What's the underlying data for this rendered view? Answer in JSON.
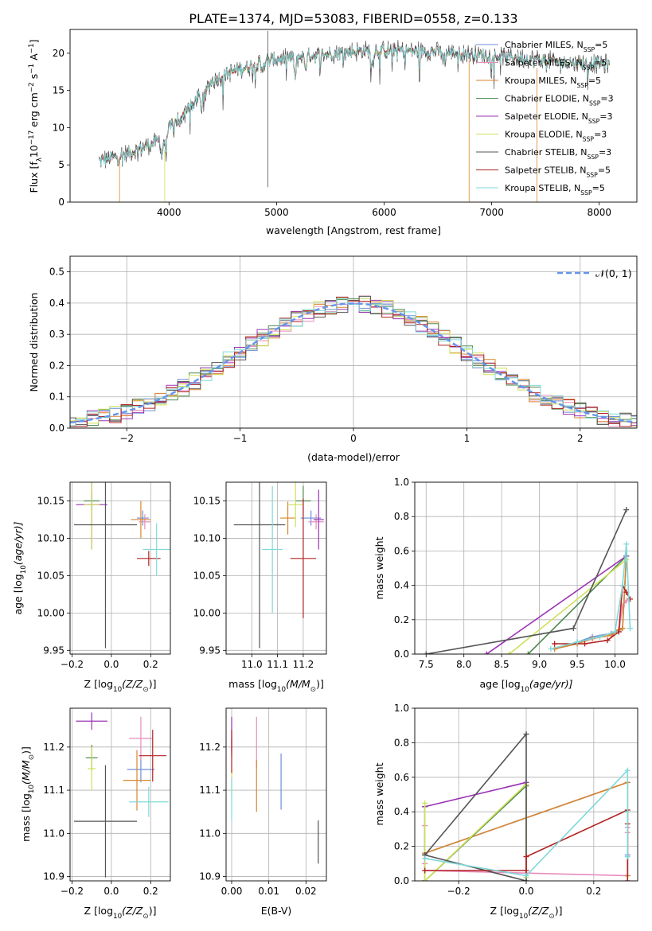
{
  "figure": {
    "suptitle": "PLATE=1374, MJD=53083, FIBERID=0558, z=0.133"
  },
  "colors": {
    "Chabrier MILES": "#6f8fd8",
    "Salpeter MILES": "#e88cbc",
    "Kroupa MILES": "#d9862e",
    "Chabrier ELODIE": "#4f8a4f",
    "Salpeter ELODIE": "#9a33b5",
    "Kroupa ELODIE": "#cfe05a",
    "Chabrier STELIB": "#555555",
    "Salpeter STELIB": "#b22222",
    "Kroupa STELIB": "#80d8d8",
    "gauss": "#6495ed"
  },
  "chart_data": [
    {
      "id": "spectrum",
      "type": "line",
      "xlabel": "wavelength [Angstrom, rest frame]",
      "ylabel_parts": [
        "Flux [f",
        "λ",
        "10",
        "−17",
        " erg cm",
        "−2",
        " s",
        "−1",
        " A",
        "−1",
        "]"
      ],
      "xlim": [
        3080,
        8350
      ],
      "ylim": [
        0,
        23.2
      ],
      "xticks": [
        4000,
        5000,
        6000,
        7000,
        8000
      ],
      "yticks": [
        0,
        5,
        10,
        15,
        20
      ],
      "legend_position": "top-right",
      "legend": [
        {
          "name": "Chabrier MILES",
          "base": "Chabrier MILES, N",
          "sub": "SSP",
          "tail": "=5"
        },
        {
          "name": "Salpeter MILES",
          "base": "Salpeter MILES, N",
          "sub": "SSP",
          "tail": "=5"
        },
        {
          "name": "Kroupa MILES",
          "base": "Kroupa MILES, N",
          "sub": "SSP",
          "tail": "=5"
        },
        {
          "name": "Chabrier ELODIE",
          "base": "Chabrier ELODIE, N",
          "sub": "SSP",
          "tail": "=3"
        },
        {
          "name": "Salpeter ELODIE",
          "base": "Salpeter ELODIE, N",
          "sub": "SSP",
          "tail": "=3"
        },
        {
          "name": "Kroupa ELODIE",
          "base": "Kroupa ELODIE, N",
          "sub": "SSP",
          "tail": "=3"
        },
        {
          "name": "Chabrier STELIB",
          "base": "Chabrier STELIB, N",
          "sub": "SSP",
          "tail": "=3"
        },
        {
          "name": "Salpeter STELIB",
          "base": "Salpeter STELIB, N",
          "sub": "SSP",
          "tail": "=5"
        },
        {
          "name": "Kroupa STELIB",
          "base": "Kroupa STELIB, N",
          "sub": "SSP",
          "tail": "=5"
        }
      ],
      "continuum": [
        [
          3350,
          5.6
        ],
        [
          3500,
          6.0
        ],
        [
          3700,
          7.0
        ],
        [
          3900,
          8.2
        ],
        [
          4000,
          9.8
        ],
        [
          4100,
          11.5
        ],
        [
          4200,
          13.2
        ],
        [
          4300,
          14.8
        ],
        [
          4400,
          16.2
        ],
        [
          4500,
          17.0
        ],
        [
          4600,
          17.6
        ],
        [
          4700,
          18.0
        ],
        [
          4800,
          18.5
        ],
        [
          4900,
          18.9
        ],
        [
          5000,
          19.2
        ],
        [
          5100,
          19.4
        ],
        [
          5200,
          19.5
        ],
        [
          5400,
          19.8
        ],
        [
          5600,
          20.1
        ],
        [
          5800,
          20.3
        ],
        [
          6000,
          20.4
        ],
        [
          6200,
          20.4
        ],
        [
          6400,
          20.3
        ],
        [
          6600,
          20.1
        ],
        [
          6800,
          19.9
        ],
        [
          7000,
          19.7
        ],
        [
          7200,
          19.5
        ],
        [
          7400,
          19.2
        ],
        [
          7600,
          18.9
        ],
        [
          7800,
          18.7
        ],
        [
          8000,
          18.6
        ],
        [
          8100,
          18.5
        ]
      ],
      "dips": [
        [
          3934,
          -2.5
        ],
        [
          3968,
          -2.2
        ],
        [
          4102,
          -1.5
        ],
        [
          4227,
          -1.2
        ],
        [
          4300,
          -2.5
        ],
        [
          4340,
          -1.5
        ],
        [
          4861,
          -1.2
        ],
        [
          5175,
          -2.8
        ],
        [
          5270,
          -1.5
        ],
        [
          5890,
          -2.0
        ],
        [
          6563,
          -1.0
        ]
      ],
      "spikes": [
        {
          "x": 4920,
          "ymin": 2.0,
          "ymax": 23.0
        },
        {
          "x": 3540,
          "ymin": 0,
          "ymax": 6.0
        },
        {
          "x": 3960,
          "ymin": 0,
          "ymax": 7.0
        },
        {
          "x": 6790,
          "ymin": 0,
          "ymax": 19.0
        },
        {
          "x": 7420,
          "ymin": 0,
          "ymax": 18.0
        }
      ],
      "series_order": [
        "Chabrier MILES",
        "Salpeter MILES",
        "Kroupa MILES",
        "Chabrier ELODIE",
        "Salpeter ELODIE",
        "Kroupa ELODIE",
        "Salpeter STELIB",
        "Chabrier STELIB",
        "Kroupa STELIB"
      ]
    },
    {
      "id": "residuals",
      "type": "line",
      "xlabel": "(data-model)/error",
      "ylabel": "Normed distribution",
      "xlim": [
        -2.5,
        2.5
      ],
      "ylim": [
        0,
        0.55
      ],
      "xticks": [
        -2,
        -1,
        0,
        1,
        2
      ],
      "yticks": [
        0.0,
        0.1,
        0.2,
        0.3,
        0.4,
        0.5
      ],
      "grid": true,
      "legend_position": "top-right",
      "legend_label": "𝒩(0, 1)",
      "bin_width": 0.1,
      "series_order": [
        "Chabrier MILES",
        "Salpeter MILES",
        "Kroupa MILES",
        "Chabrier ELODIE",
        "Salpeter ELODIE",
        "Kroupa ELODIE",
        "Chabrier STELIB",
        "Salpeter STELIB",
        "Kroupa STELIB"
      ]
    },
    {
      "id": "age_vs_Z",
      "type": "scatter",
      "xlabel_parts": [
        "Z [log",
        "10",
        "(Z/Z",
        "⊙",
        ")]"
      ],
      "ylabel_parts": [
        "age  [log",
        "10",
        "(age/yr)]"
      ],
      "xlim": [
        -0.21,
        0.3
      ],
      "ylim": [
        9.945,
        10.175
      ],
      "xticks": [
        -0.2,
        0.0,
        0.2
      ],
      "yticks": [
        9.95,
        10.0,
        10.05,
        10.1,
        10.15
      ],
      "grid": true,
      "points": [
        {
          "name": "Chabrier MILES",
          "x": 0.16,
          "xerr": 0.03,
          "y": 10.127,
          "yerr": 0.01
        },
        {
          "name": "Salpeter MILES",
          "x": 0.17,
          "xerr": 0.03,
          "y": 10.122,
          "yerr": 0.01
        },
        {
          "name": "Kroupa MILES",
          "x": 0.15,
          "xerr": 0.05,
          "y": 10.125,
          "yerr": 0.025
        },
        {
          "name": "Chabrier ELODIE",
          "x": -0.1,
          "xerr": 0.04,
          "y": 10.15,
          "yerr": 0.01
        },
        {
          "name": "Salpeter ELODIE",
          "x": -0.1,
          "xerr": 0.08,
          "y": 10.145,
          "yerr": 0.06
        },
        {
          "name": "Kroupa ELODIE",
          "x": -0.1,
          "xerr": 0.04,
          "y": 10.145,
          "yerr": 0.06
        },
        {
          "name": "Chabrier STELIB",
          "x": -0.03,
          "xerr": 0.16,
          "y": 10.118,
          "yerr": 0.165
        },
        {
          "name": "Salpeter STELIB",
          "x": 0.19,
          "xerr": 0.06,
          "y": 10.073,
          "yerr": 0.01
        },
        {
          "name": "Kroupa STELIB",
          "x": 0.23,
          "xerr": 0.07,
          "y": 10.085,
          "yerr": 0.035
        }
      ]
    },
    {
      "id": "age_vs_mass",
      "type": "scatter",
      "xlabel_parts": [
        "mass [log",
        "10",
        "(M/M",
        "⊙",
        ")]"
      ],
      "xlim": [
        10.9,
        11.29
      ],
      "ylim": [
        9.945,
        10.175
      ],
      "xticks": [
        11.0,
        11.1,
        11.2
      ],
      "yticks": [
        9.95,
        10.0,
        10.05,
        10.1,
        10.15
      ],
      "grid": true,
      "points": [
        {
          "name": "Chabrier MILES",
          "x": 11.23,
          "xerr": 0.04,
          "y": 10.127,
          "yerr": 0.01
        },
        {
          "name": "Salpeter MILES",
          "x": 11.25,
          "xerr": 0.03,
          "y": 10.122,
          "yerr": 0.01
        },
        {
          "name": "Kroupa MILES",
          "x": 11.14,
          "xerr": 0.03,
          "y": 10.127,
          "yerr": 0.022
        },
        {
          "name": "Chabrier ELODIE",
          "x": 11.2,
          "xerr": 0.03,
          "y": 10.15,
          "yerr": 0.02
        },
        {
          "name": "Salpeter ELODIE",
          "x": 11.26,
          "xerr": 0.02,
          "y": 10.125,
          "yerr": 0.04
        },
        {
          "name": "Kroupa ELODIE",
          "x": 11.17,
          "xerr": 0.03,
          "y": 10.145,
          "yerr": 0.03
        },
        {
          "name": "Chabrier STELIB",
          "x": 11.03,
          "xerr": 0.1,
          "y": 10.118,
          "yerr": 0.165
        },
        {
          "name": "Salpeter STELIB",
          "x": 11.2,
          "xerr": 0.05,
          "y": 10.073,
          "yerr": 0.08
        },
        {
          "name": "Kroupa STELIB",
          "x": 11.08,
          "xerr": 0.04,
          "y": 10.085,
          "yerr": 0.085
        }
      ]
    },
    {
      "id": "massweight_vs_age",
      "type": "line",
      "xlabel_parts": [
        "age  [log",
        "10",
        "(age/yr)]"
      ],
      "ylabel": "mass weight",
      "xlim": [
        7.35,
        10.3
      ],
      "ylim": [
        0,
        1.0
      ],
      "xticks": [
        7.5,
        8.0,
        8.5,
        9.0,
        9.5,
        10.0
      ],
      "yticks": [
        0.0,
        0.2,
        0.4,
        0.6,
        0.8,
        1.0
      ],
      "grid": true,
      "series": [
        {
          "name": "Chabrier MILES",
          "x": [
            9.2,
            9.5,
            9.7,
            9.95,
            10.05,
            10.1,
            10.15
          ],
          "y": [
            0.03,
            0.07,
            0.1,
            0.12,
            0.14,
            0.15,
            0.57
          ]
        },
        {
          "name": "Salpeter MILES",
          "x": [
            9.2,
            9.5,
            9.7,
            9.95,
            10.05,
            10.1,
            10.15
          ],
          "y": [
            0.03,
            0.06,
            0.09,
            0.11,
            0.13,
            0.28,
            0.31
          ]
        },
        {
          "name": "Kroupa MILES",
          "x": [
            9.2,
            9.5,
            9.7,
            9.95,
            10.05,
            10.1,
            10.15
          ],
          "y": [
            0.03,
            0.06,
            0.09,
            0.11,
            0.14,
            0.15,
            0.57
          ]
        },
        {
          "name": "Chabrier ELODIE",
          "x": [
            8.85,
            10.15
          ],
          "y": [
            0.0,
            0.57
          ]
        },
        {
          "name": "Salpeter ELODIE",
          "x": [
            8.3,
            10.15
          ],
          "y": [
            0.0,
            0.57
          ]
        },
        {
          "name": "Kroupa ELODIE",
          "x": [
            8.6,
            10.15
          ],
          "y": [
            0.0,
            0.55
          ]
        },
        {
          "name": "Chabrier STELIB",
          "x": [
            7.5,
            9.45,
            10.15
          ],
          "y": [
            0.0,
            0.15,
            0.84
          ]
        },
        {
          "name": "Salpeter STELIB",
          "x": [
            9.2,
            9.6,
            9.9,
            10.05,
            10.1,
            10.15,
            10.2
          ],
          "y": [
            0.06,
            0.06,
            0.08,
            0.13,
            0.4,
            0.36,
            0.32
          ]
        },
        {
          "name": "Kroupa STELIB",
          "x": [
            9.15,
            9.5,
            9.8,
            10.0,
            10.1,
            10.15,
            10.2
          ],
          "y": [
            0.03,
            0.07,
            0.1,
            0.13,
            0.4,
            0.64,
            0.15
          ]
        }
      ]
    },
    {
      "id": "mass_vs_Z",
      "type": "scatter",
      "xlabel_parts": [
        "Z [log",
        "10",
        "(Z/Z",
        "⊙",
        ")]"
      ],
      "ylabel_parts": [
        "mass [log",
        "10",
        "(M/M",
        "⊙",
        ")]"
      ],
      "xlim": [
        -0.21,
        0.3
      ],
      "ylim": [
        10.89,
        11.29
      ],
      "xticks": [
        -0.2,
        0.0,
        0.2
      ],
      "yticks": [
        10.9,
        11.0,
        11.1,
        11.2
      ],
      "grid": true,
      "points": [
        {
          "name": "Chabrier MILES",
          "x": 0.15,
          "xerr": 0.07,
          "y": 11.148,
          "yerr": 0.03
        },
        {
          "name": "Salpeter MILES",
          "x": 0.15,
          "xerr": 0.06,
          "y": 11.22,
          "yerr": 0.05
        },
        {
          "name": "Kroupa MILES",
          "x": 0.13,
          "xerr": 0.07,
          "y": 11.123,
          "yerr": 0.07
        },
        {
          "name": "Chabrier ELODIE",
          "x": -0.1,
          "xerr": 0.03,
          "y": 11.175,
          "yerr": 0.03
        },
        {
          "name": "Salpeter ELODIE",
          "x": -0.1,
          "xerr": 0.08,
          "y": 11.26,
          "yerr": 0.02
        },
        {
          "name": "Kroupa ELODIE",
          "x": -0.1,
          "xerr": 0.02,
          "y": 11.15,
          "yerr": 0.05
        },
        {
          "name": "Chabrier STELIB",
          "x": -0.03,
          "xerr": 0.16,
          "y": 11.028,
          "yerr": 0.13
        },
        {
          "name": "Salpeter STELIB",
          "x": 0.21,
          "xerr": 0.07,
          "y": 11.18,
          "yerr": 0.06
        },
        {
          "name": "Kroupa STELIB",
          "x": 0.19,
          "xerr": 0.1,
          "y": 11.073,
          "yerr": 0.035
        }
      ]
    },
    {
      "id": "mass_vs_EBV",
      "type": "scatter",
      "xlabel": "E(B-V)",
      "xlim": [
        -0.0015,
        0.0255
      ],
      "ylim": [
        10.89,
        11.29
      ],
      "xticks": [
        0.0,
        0.01,
        0.02
      ],
      "yticks": [
        10.9,
        11.0,
        11.1,
        11.2
      ],
      "grid": true,
      "points": [
        {
          "name": "Chabrier MILES",
          "x": 0.0133,
          "xerr": 0,
          "y": 11.12,
          "yerr": 0.065
        },
        {
          "name": "Salpeter MILES",
          "x": 0.0067,
          "xerr": 0,
          "y": 11.21,
          "yerr": 0.06
        },
        {
          "name": "Kroupa MILES",
          "x": 0.0067,
          "xerr": 0,
          "y": 11.11,
          "yerr": 0.06
        },
        {
          "name": "Chabrier ELODIE",
          "x": 0.0,
          "xerr": 0,
          "y": 11.2,
          "yerr": 0.02
        },
        {
          "name": "Salpeter ELODIE",
          "x": 0.0,
          "xerr": 0,
          "y": 11.23,
          "yerr": 0.04
        },
        {
          "name": "Kroupa ELODIE",
          "x": 0.0,
          "xerr": 0,
          "y": 11.12,
          "yerr": 0.03
        },
        {
          "name": "Chabrier STELIB",
          "x": 0.0233,
          "xerr": 0,
          "y": 10.98,
          "yerr": 0.05
        },
        {
          "name": "Salpeter STELIB",
          "x": 0.0,
          "xerr": 0,
          "y": 11.19,
          "yerr": 0.05
        },
        {
          "name": "Kroupa STELIB",
          "x": 0.0,
          "xerr": 0,
          "y": 11.08,
          "yerr": 0.05
        }
      ]
    },
    {
      "id": "massweight_vs_Z",
      "type": "line",
      "xlabel_parts": [
        "Z [log",
        "10",
        "(Z/Z",
        "⊙",
        ")]"
      ],
      "ylabel": "mass weight",
      "xlim": [
        -0.33,
        0.33
      ],
      "ylim": [
        0,
        1.0
      ],
      "xticks": [
        -0.2,
        0.0,
        0.2
      ],
      "yticks": [
        0.0,
        0.2,
        0.4,
        0.6,
        0.8,
        1.0
      ],
      "grid": true,
      "series": [
        {
          "name": "Chabrier MILES",
          "x": [
            -0.3,
            0.3,
            0.3,
            0.3
          ],
          "y": [
            0.16,
            0.57,
            0.15,
            0.03
          ]
        },
        {
          "name": "Salpeter MILES",
          "x": [
            -0.3,
            -0.3,
            -0.3,
            0.3,
            0.3,
            0.3
          ],
          "y": [
            0.32,
            0.1,
            0.06,
            0.03,
            0.28,
            0.31
          ]
        },
        {
          "name": "Kroupa MILES",
          "x": [
            -0.3,
            0.3,
            0.3
          ],
          "y": [
            0.16,
            0.57,
            0.03
          ]
        },
        {
          "name": "Chabrier ELODIE",
          "x": [
            -0.3,
            -0.3,
            0.0,
            0.0
          ],
          "y": [
            0.43,
            0.0,
            0.55,
            0.0
          ]
        },
        {
          "name": "Salpeter ELODIE",
          "x": [
            -0.3,
            -0.3,
            0.0
          ],
          "y": [
            0.0,
            0.43,
            0.57
          ]
        },
        {
          "name": "Kroupa ELODIE",
          "x": [
            -0.3,
            -0.3,
            0.0,
            0.0
          ],
          "y": [
            0.45,
            0.0,
            0.56,
            0.02
          ]
        },
        {
          "name": "Chabrier STELIB",
          "x": [
            -0.3,
            0.0,
            0.0,
            -0.3
          ],
          "y": [
            0.15,
            0.85,
            0.0,
            0.15
          ]
        },
        {
          "name": "Salpeter STELIB",
          "x": [
            -0.3,
            0.0,
            0.0,
            0.3,
            0.3,
            0.3
          ],
          "y": [
            0.06,
            0.06,
            0.14,
            0.41,
            0.33,
            0.0
          ]
        },
        {
          "name": "Kroupa STELIB",
          "x": [
            -0.3,
            0.0,
            0.3,
            0.3,
            0.3
          ],
          "y": [
            0.13,
            0.03,
            0.64,
            0.4,
            0.14
          ]
        }
      ]
    }
  ]
}
